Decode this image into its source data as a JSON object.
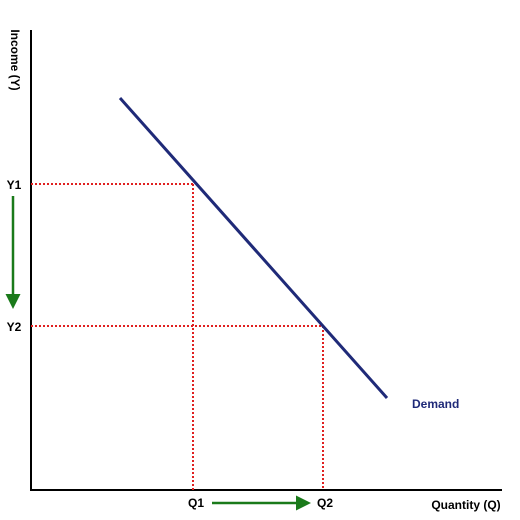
{
  "axes": {
    "y_label": "Income (Y)",
    "x_label": "Quantity (Q)"
  },
  "y_levels": [
    "Y1",
    "Y2"
  ],
  "x_levels": [
    "Q1",
    "Q2"
  ],
  "curve_label": "Demand"
}
